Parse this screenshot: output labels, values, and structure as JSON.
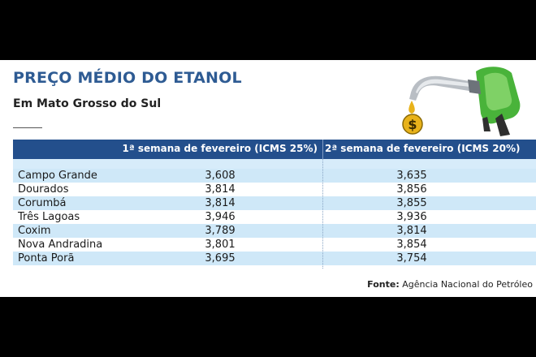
{
  "title": "PREÇO MÉDIO DO ETANOL",
  "subtitle": "Em Mato Grosso do Sul",
  "table": {
    "headers": [
      "",
      "1ª semana de fevereiro (ICMS 25%)",
      "2ª semana de fevereiro (ICMS 20%)"
    ],
    "rows": [
      {
        "city": "Campo Grande",
        "week1": "3,608",
        "week2": "3,635"
      },
      {
        "city": "Dourados",
        "week1": "3,814",
        "week2": "3,856"
      },
      {
        "city": "Corumbá",
        "week1": "3,814",
        "week2": "3,855"
      },
      {
        "city": "Três Lagoas",
        "week1": "3,946",
        "week2": "3,936"
      },
      {
        "city": "Coxim",
        "week1": "3,789",
        "week2": "3,814"
      },
      {
        "city": "Nova Andradina",
        "week1": "3,801",
        "week2": "3,854"
      },
      {
        "city": "Ponta Porã",
        "week1": "3,695",
        "week2": "3,754"
      }
    ]
  },
  "source": {
    "label": "Fonte:",
    "text": "Agência Nacional do Petróleo"
  },
  "illustration": {
    "name": "fuel-pump-nozzle-icon",
    "coin_symbol": "$"
  },
  "colors": {
    "title": "#2e5b93",
    "header_bg": "#234f8c",
    "row_alt": "#cfe8f8",
    "pump_green": "#49b33a",
    "coin": "#e8b21a"
  }
}
